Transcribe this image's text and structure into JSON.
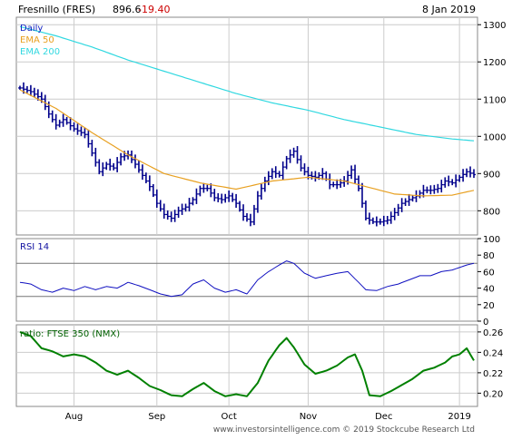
{
  "header": {
    "symbol_label": "Fresnillo (FRES)",
    "price": "896.6",
    "change": "-19.40",
    "date": "8 Jan 2019"
  },
  "footer": {
    "credit": "www.investorsintelligence.com © 2019 Stockcube Research Ltd"
  },
  "colors": {
    "price_bars": "#00008b",
    "ema50": "#e8a020",
    "ema200": "#30d8e0",
    "rsi_line": "#1010c0",
    "ratio_line": "#008000",
    "legend_daily": "#1020c0",
    "change_negative": "#cc0000",
    "grid": "#cccccc"
  },
  "chart_data": [
    {
      "type": "ohlc",
      "panel": "price",
      "legend": [
        "Daily",
        "EMA 50",
        "EMA 200"
      ],
      "y_ticks": [
        800,
        900,
        1000,
        1100,
        1200,
        1300
      ],
      "ylim": [
        735,
        1320
      ],
      "x_tick_labels": [
        "Aug",
        "Sep",
        "Oct",
        "Nov",
        "Dec",
        "2019"
      ],
      "x_tick_index": [
        15,
        38,
        58,
        80,
        101,
        122
      ],
      "n_bars": 127,
      "close_anchors": [
        [
          0,
          1130
        ],
        [
          3,
          1120
        ],
        [
          6,
          1100
        ],
        [
          8,
          1060
        ],
        [
          10,
          1030
        ],
        [
          12,
          1045
        ],
        [
          15,
          1020
        ],
        [
          18,
          1005
        ],
        [
          20,
          955
        ],
        [
          22,
          905
        ],
        [
          24,
          925
        ],
        [
          26,
          915
        ],
        [
          28,
          945
        ],
        [
          30,
          950
        ],
        [
          32,
          925
        ],
        [
          34,
          895
        ],
        [
          36,
          865
        ],
        [
          38,
          820
        ],
        [
          40,
          790
        ],
        [
          42,
          780
        ],
        [
          44,
          800
        ],
        [
          46,
          810
        ],
        [
          48,
          830
        ],
        [
          50,
          860
        ],
        [
          52,
          860
        ],
        [
          54,
          835
        ],
        [
          56,
          830
        ],
        [
          58,
          840
        ],
        [
          60,
          820
        ],
        [
          62,
          785
        ],
        [
          64,
          770
        ],
        [
          66,
          840
        ],
        [
          68,
          880
        ],
        [
          70,
          905
        ],
        [
          72,
          895
        ],
        [
          74,
          940
        ],
        [
          76,
          960
        ],
        [
          78,
          915
        ],
        [
          80,
          895
        ],
        [
          82,
          890
        ],
        [
          84,
          900
        ],
        [
          86,
          870
        ],
        [
          88,
          870
        ],
        [
          90,
          880
        ],
        [
          92,
          910
        ],
        [
          94,
          860
        ],
        [
          95,
          820
        ],
        [
          96,
          780
        ],
        [
          98,
          770
        ],
        [
          100,
          770
        ],
        [
          102,
          775
        ],
        [
          104,
          795
        ],
        [
          106,
          820
        ],
        [
          108,
          830
        ],
        [
          110,
          840
        ],
        [
          112,
          855
        ],
        [
          114,
          855
        ],
        [
          116,
          860
        ],
        [
          118,
          880
        ],
        [
          120,
          875
        ],
        [
          122,
          890
        ],
        [
          124,
          905
        ],
        [
          126,
          897
        ]
      ],
      "ema50_anchors": [
        [
          0,
          1125
        ],
        [
          10,
          1075
        ],
        [
          20,
          1010
        ],
        [
          30,
          950
        ],
        [
          40,
          900
        ],
        [
          50,
          875
        ],
        [
          60,
          858
        ],
        [
          70,
          880
        ],
        [
          80,
          890
        ],
        [
          90,
          880
        ],
        [
          96,
          865
        ],
        [
          104,
          845
        ],
        [
          112,
          840
        ],
        [
          120,
          842
        ],
        [
          126,
          855
        ]
      ],
      "ema200_anchors": [
        [
          0,
          1295
        ],
        [
          10,
          1270
        ],
        [
          20,
          1240
        ],
        [
          30,
          1205
        ],
        [
          40,
          1175
        ],
        [
          50,
          1145
        ],
        [
          60,
          1115
        ],
        [
          70,
          1090
        ],
        [
          80,
          1070
        ],
        [
          90,
          1045
        ],
        [
          100,
          1025
        ],
        [
          110,
          1005
        ],
        [
          120,
          993
        ],
        [
          126,
          988
        ]
      ]
    },
    {
      "type": "line",
      "panel": "rsi",
      "title": "RSI 14",
      "y_ticks": [
        0,
        20,
        40,
        60,
        80,
        100
      ],
      "ylim": [
        0,
        100
      ],
      "reference_lines": [
        30,
        70
      ],
      "anchors": [
        [
          0,
          47
        ],
        [
          3,
          45
        ],
        [
          6,
          38
        ],
        [
          9,
          35
        ],
        [
          12,
          40
        ],
        [
          15,
          37
        ],
        [
          18,
          42
        ],
        [
          21,
          38
        ],
        [
          24,
          42
        ],
        [
          27,
          40
        ],
        [
          30,
          47
        ],
        [
          33,
          43
        ],
        [
          36,
          38
        ],
        [
          39,
          33
        ],
        [
          42,
          30
        ],
        [
          45,
          32
        ],
        [
          48,
          45
        ],
        [
          51,
          50
        ],
        [
          54,
          40
        ],
        [
          57,
          35
        ],
        [
          60,
          38
        ],
        [
          63,
          33
        ],
        [
          66,
          50
        ],
        [
          69,
          60
        ],
        [
          72,
          68
        ],
        [
          74,
          73
        ],
        [
          76,
          70
        ],
        [
          79,
          58
        ],
        [
          82,
          52
        ],
        [
          85,
          55
        ],
        [
          88,
          58
        ],
        [
          91,
          60
        ],
        [
          94,
          47
        ],
        [
          96,
          38
        ],
        [
          99,
          37
        ],
        [
          102,
          42
        ],
        [
          105,
          45
        ],
        [
          108,
          50
        ],
        [
          111,
          55
        ],
        [
          114,
          55
        ],
        [
          117,
          60
        ],
        [
          120,
          62
        ],
        [
          122,
          65
        ],
        [
          124,
          68
        ],
        [
          126,
          70
        ]
      ]
    },
    {
      "type": "line",
      "panel": "ratio",
      "title": "ratio: FTSE 350 (NMX)",
      "y_ticks": [
        0.2,
        0.22,
        0.24,
        0.26
      ],
      "ylim": [
        0.187,
        0.267
      ],
      "anchors": [
        [
          0,
          0.26
        ],
        [
          3,
          0.256
        ],
        [
          6,
          0.244
        ],
        [
          9,
          0.241
        ],
        [
          12,
          0.236
        ],
        [
          15,
          0.238
        ],
        [
          18,
          0.236
        ],
        [
          21,
          0.23
        ],
        [
          24,
          0.222
        ],
        [
          27,
          0.218
        ],
        [
          30,
          0.222
        ],
        [
          33,
          0.215
        ],
        [
          36,
          0.207
        ],
        [
          39,
          0.203
        ],
        [
          42,
          0.198
        ],
        [
          45,
          0.197
        ],
        [
          48,
          0.204
        ],
        [
          51,
          0.21
        ],
        [
          54,
          0.202
        ],
        [
          57,
          0.197
        ],
        [
          60,
          0.199
        ],
        [
          63,
          0.197
        ],
        [
          66,
          0.21
        ],
        [
          69,
          0.232
        ],
        [
          72,
          0.247
        ],
        [
          74,
          0.254
        ],
        [
          76,
          0.245
        ],
        [
          79,
          0.228
        ],
        [
          82,
          0.219
        ],
        [
          85,
          0.222
        ],
        [
          88,
          0.227
        ],
        [
          91,
          0.235
        ],
        [
          93,
          0.238
        ],
        [
          95,
          0.222
        ],
        [
          97,
          0.198
        ],
        [
          100,
          0.197
        ],
        [
          103,
          0.202
        ],
        [
          106,
          0.208
        ],
        [
          109,
          0.214
        ],
        [
          112,
          0.222
        ],
        [
          115,
          0.225
        ],
        [
          118,
          0.23
        ],
        [
          120,
          0.236
        ],
        [
          122,
          0.238
        ],
        [
          124,
          0.244
        ],
        [
          126,
          0.232
        ]
      ]
    }
  ]
}
